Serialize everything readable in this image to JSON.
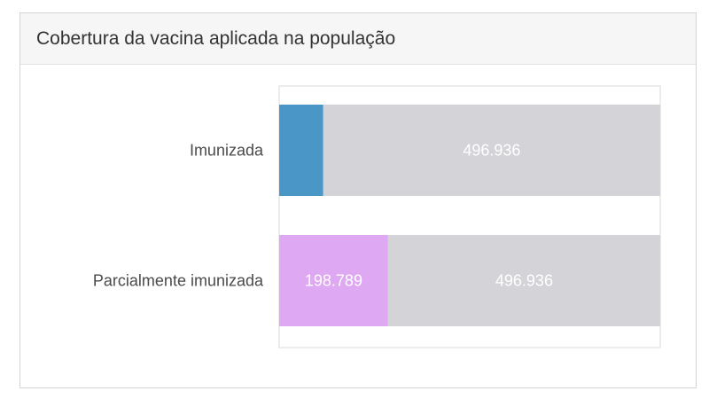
{
  "card": {
    "title": "Cobertura da vacina aplicada na população"
  },
  "chart_data": {
    "type": "bar",
    "orientation": "horizontal",
    "stacked": true,
    "categories": [
      "Imunizada",
      "Parcialmente imunizada"
    ],
    "rows": [
      {
        "category": "Imunizada",
        "segments": [
          {
            "value": 65000,
            "color": "#4a96c6",
            "label": ""
          },
          {
            "value": 496936,
            "color": "#d3d3d8",
            "label": "496.936"
          }
        ]
      },
      {
        "category": "Parcialmente imunizada",
        "segments": [
          {
            "value": 198789,
            "color": "#dfa8f2",
            "label": "198.789"
          },
          {
            "value": 496936,
            "color": "#d3d3d8",
            "label": "496.936"
          }
        ]
      }
    ],
    "title": "",
    "xlabel": "",
    "ylabel": "",
    "grid": false,
    "legend": "none"
  }
}
